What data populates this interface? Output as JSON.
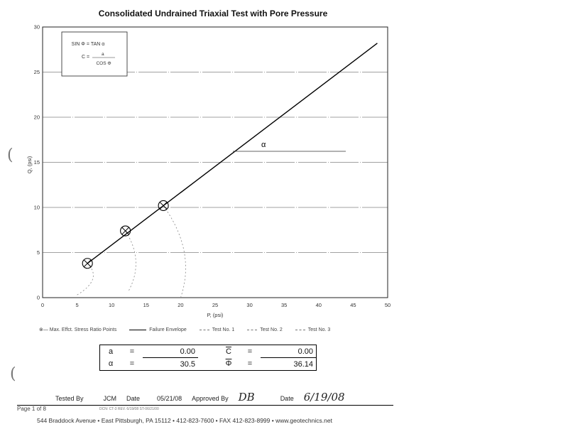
{
  "title": "Consolidated Undrained Triaxial Test with Pore Pressure",
  "formula_box": {
    "line1": "SIN Φ = TAN α",
    "line2a": "C =",
    "line2_num": "a",
    "line2_den": "COS Φ"
  },
  "chart_data": {
    "type": "line",
    "title": "Consolidated Undrained Triaxial Test with Pore Pressure",
    "xlabel": "P, (psi)",
    "ylabel": "Q, (psi)",
    "xlim": [
      0,
      50
    ],
    "ylim": [
      0,
      30
    ],
    "x_ticks": [
      "0",
      "5",
      "10",
      "15",
      "20",
      "25",
      "30",
      "35",
      "40",
      "45",
      "50"
    ],
    "y_ticks": [
      "0",
      "5",
      "10",
      "15",
      "20",
      "25",
      "30"
    ],
    "grid": "horizontal",
    "series": [
      {
        "name": "Failure Envelope",
        "x": [
          6.5,
          48.5
        ],
        "y": [
          3.8,
          28.2
        ]
      },
      {
        "name": "Max. Effct. Stress Ratio Points",
        "x": [
          6.5,
          12.0,
          17.5
        ],
        "y": [
          3.8,
          7.4,
          10.2
        ]
      }
    ],
    "stress_paths": [
      {
        "name": "Test No. 1",
        "x": [
          5.0,
          6.5
        ],
        "y": [
          0.3,
          3.8
        ]
      },
      {
        "name": "Test No. 2",
        "x": [
          12.5,
          12.0
        ],
        "y": [
          0.8,
          7.4
        ]
      },
      {
        "name": "Test No. 3",
        "x": [
          20.0,
          17.5
        ],
        "y": [
          0.0,
          10.2
        ]
      }
    ],
    "annotations": [
      "α"
    ]
  },
  "legend": [
    {
      "label": "⊗— Max. Effct. Stress Ratio Points",
      "kind": "circle"
    },
    {
      "label": "Failure Envelope",
      "kind": "line"
    },
    {
      "label": "Test No. 1",
      "kind": "dash"
    },
    {
      "label": "Test No. 2",
      "kind": "dash"
    },
    {
      "label": "Test No. 3",
      "kind": "dash"
    }
  ],
  "results": {
    "a_sym": "a",
    "a_val": "0.00",
    "c_sym": "C",
    "c_val": "0.00",
    "alpha_sym": "α",
    "alpha_val": "30.5",
    "phi_sym": "Φ",
    "phi_val": "36.14",
    "eq": "="
  },
  "signoff": {
    "tested_by_label": "Tested By",
    "tested_by": "JCM",
    "date_label": "Date",
    "date": "05/21/08",
    "approved_by_label": "Approved By",
    "approved_by": "DB",
    "approved_date_label": "Date",
    "approved_date": "6/19/08"
  },
  "page": "Page 1 of 8",
  "code": "DCN: CT-3 REV. 6/19/08 ST-06/21/00",
  "address": "544 Braddock Avenue  •  East Pittsburgh, PA 15112  •  412-823-7600  •  FAX 412-823-8999  •  www.geotechnics.net"
}
